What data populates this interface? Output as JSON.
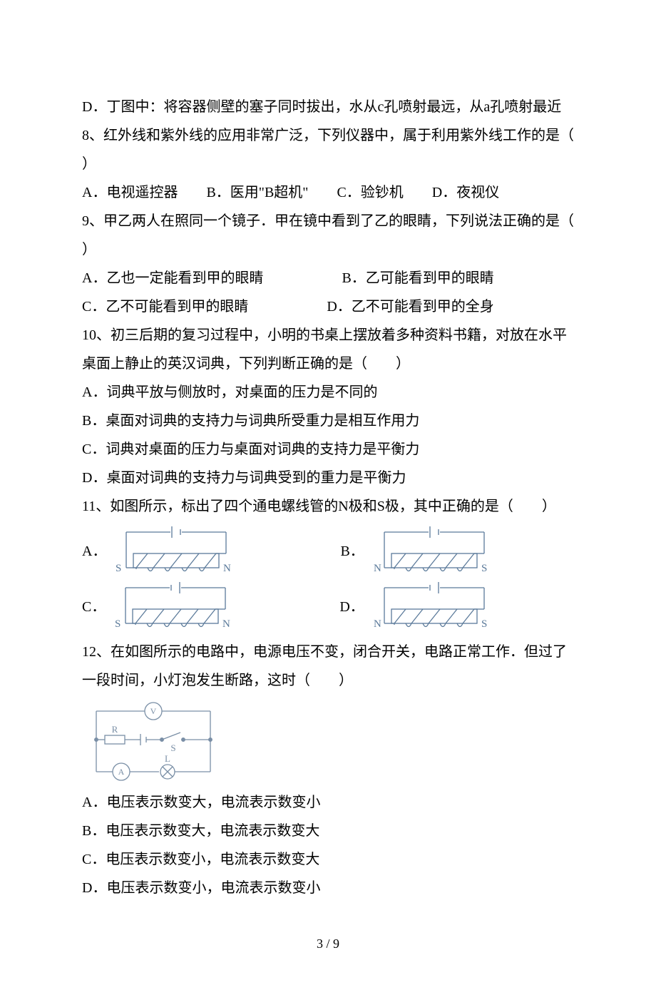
{
  "q7_optD": "D．丁图中：将容器侧壁的塞子同时拔出，水从c孔喷射最远，从a孔喷射最近",
  "q8_stem": "8、红外线和紫外线的应用非常广泛，下列仪器中，属于利用紫外线工作的是（",
  "q8_close": "）",
  "q8_opts": "A．电视遥控器　　B．医用\"B超机\"　　C．验钞机　　D．夜视仪",
  "q9_stem": "9、甲乙两人在照同一个镜子．甲在镜中看到了乙的眼睛，下列说法正确的是（",
  "q9_close": "）",
  "q9_A": "A．乙也一定能看到甲的眼睛",
  "q9_B": "B．乙可能看到甲的眼睛",
  "q9_C": "C．乙不可能看到甲的眼睛",
  "q9_D": "D．乙不可能看到甲的全身",
  "q10_stem1": "10、初三后期的复习过程中，小明的书桌上摆放着多种资料书籍，对放在水平",
  "q10_stem2": "桌面上静止的英汉词典，下列判断正确的是（　　）",
  "q10_A": "A．词典平放与侧放时，对桌面的压力是不同的",
  "q10_B": "B．桌面对词典的支持力与词典所受重力是相互作用力",
  "q10_C": "C．词典对桌面的压力与桌面对词典的支持力是平衡力",
  "q10_D": "D．桌面对词典的支持力与词典受到的重力是平衡力",
  "q11_stem": "11、如图所示，标出了四个通电螺线管的N极和S极，其中正确的是（　　）",
  "q11_labels": {
    "A": "A．",
    "B": "B．",
    "C": "C．",
    "D": "D．"
  },
  "q12_stem1": "12、在如图所示的电路中，电源电压不变，闭合开关，电路正常工作．但过了",
  "q12_stem2": "一段时间，小灯泡发生断路，这时（　　）",
  "q12_A": "A．电压表示数变大，电流表示数变小",
  "q12_B": "B．电压表示数变大，电流表示数变大",
  "q12_C": "C．电压表示数变小，电流表示数变大",
  "q12_D": "D．电压表示数变小，电流表示数变小",
  "page_number": "3 / 9",
  "sol_colors": {
    "stroke": "#5b7a9a",
    "fill": "#ffffff",
    "text": "#5b7a9a"
  },
  "circuit_colors": {
    "stroke": "#7a8fa6",
    "text": "#7a8fa6"
  },
  "solenoids": {
    "A": {
      "left": "S",
      "right": "N",
      "battery_long_left": true
    },
    "B": {
      "left": "N",
      "right": "S",
      "battery_long_left": true
    },
    "C": {
      "left": "S",
      "right": "N",
      "battery_long_left": false
    },
    "D": {
      "left": "N",
      "right": "S",
      "battery_long_left": false
    }
  }
}
